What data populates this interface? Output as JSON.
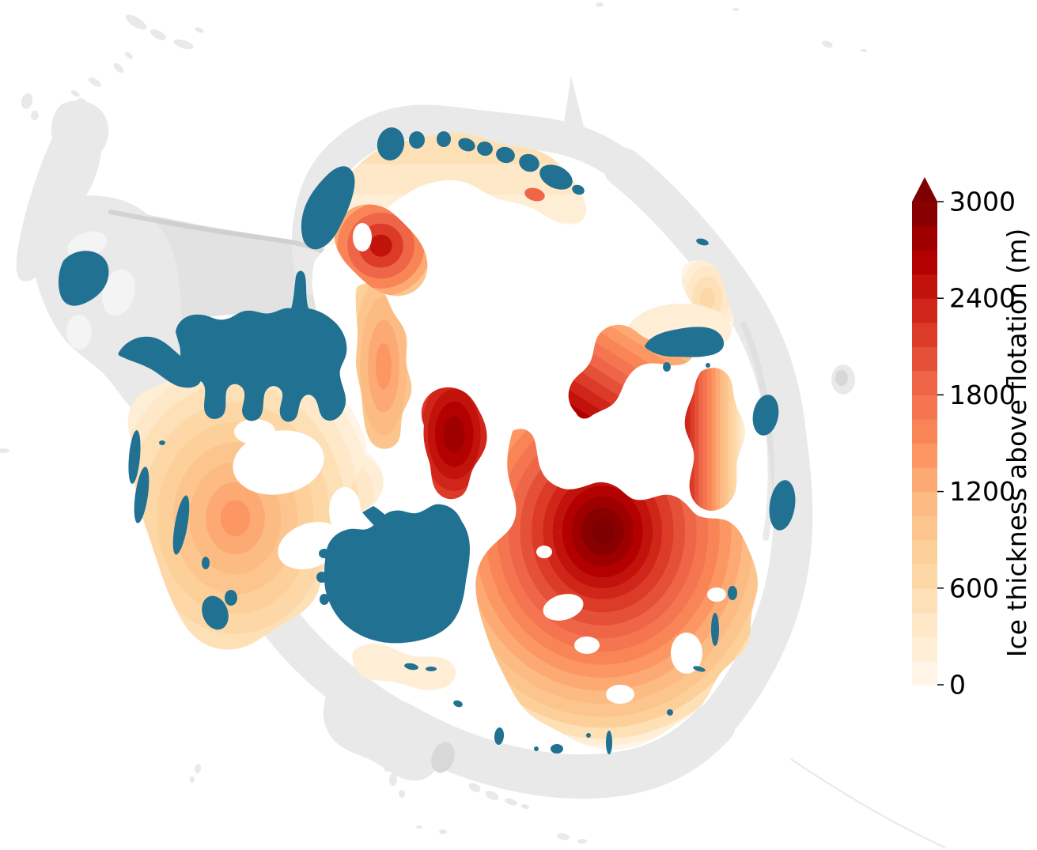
{
  "figure": {
    "type": "map",
    "background": "#ffffff",
    "description": "Antarctica map of ice thickness above flotation with discrete red colorbar, teal floating/retreated areas and grey bedrock/shelf areas"
  },
  "colorbar": {
    "label": "Ice thickness above flotation (m)",
    "ticks": [
      "0",
      "600",
      "1200",
      "1800",
      "2400",
      "3000"
    ],
    "tick_values": [
      0,
      600,
      1200,
      1800,
      2400,
      3000
    ],
    "min": 0,
    "max": 3000,
    "band_step": 150,
    "extend": "max",
    "band_colors": [
      "#fff4e5",
      "#feeed6",
      "#fee8c8",
      "#fee0b7",
      "#fdd8a6",
      "#fdcf99",
      "#fdc58e",
      "#fdbb84",
      "#fda973",
      "#fc9662",
      "#f98556",
      "#f4754f",
      "#ef6548",
      "#e55038",
      "#dc3b27",
      "#d02619",
      "#c1130c",
      "#b30000",
      "#9e0000",
      "#890000"
    ],
    "all_colors": [
      "#fff4e5",
      "#feeed6",
      "#fee8c8",
      "#fee0b7",
      "#fdd8a6",
      "#fdcf99",
      "#fdc58e",
      "#fdbb84",
      "#fda973",
      "#fc9662",
      "#f98556",
      "#f4754f",
      "#ef6548",
      "#e55038",
      "#dc3b27",
      "#d02619",
      "#c1130c",
      "#b30000",
      "#9e0000",
      "#890000",
      "#7f0000"
    ],
    "over_color": "#7f0000",
    "tick_color": "#000000",
    "text_color": "#000000"
  },
  "palette": {
    "floating_teal": "#217192",
    "shelf_grey": "#e9e9e9",
    "shelf_grey_mid": "#e2e2e2",
    "shelf_grey_dark": "#d8d8d8",
    "shelf_grey_darker": "#c9c9c9",
    "interior_white": "#ffffff",
    "cream_fringe": "#feeed6"
  }
}
